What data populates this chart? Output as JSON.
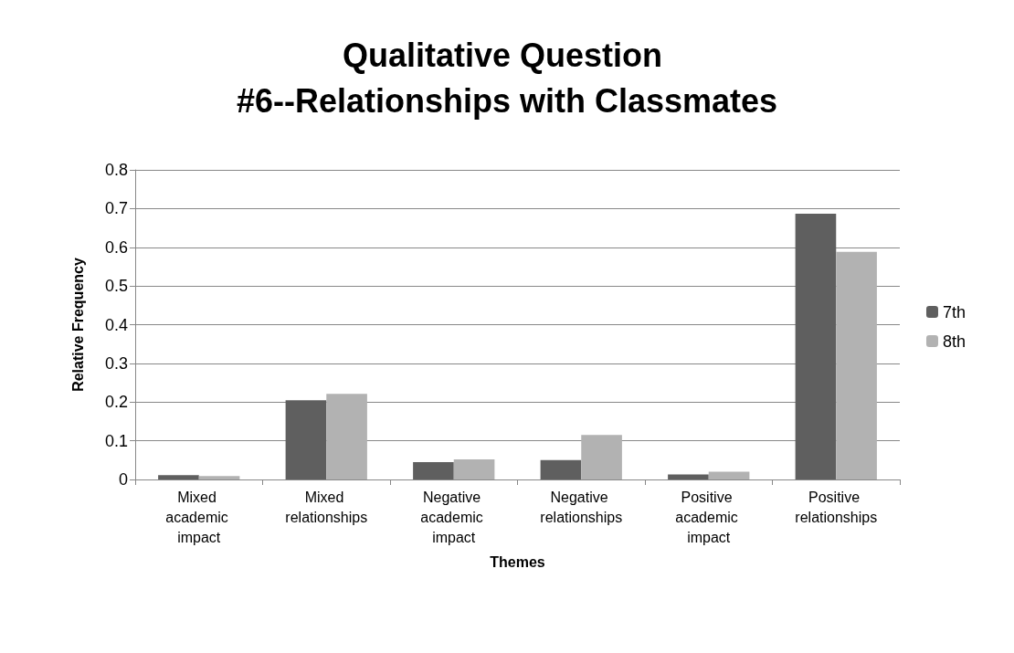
{
  "chart_data": {
    "type": "bar",
    "title": "Qualitative Question #6--Relationships with Classmates",
    "xlabel": "Themes",
    "ylabel": "Relative Frequency",
    "categories": [
      "Mixed academic impact",
      "Mixed relationships",
      "Negative academic impact",
      "Negative relationships",
      "Positive academic impact",
      "Positive relationships"
    ],
    "series": [
      {
        "name": "7th",
        "color": "#5f5f5f",
        "values": [
          0.011,
          0.205,
          0.045,
          0.05,
          0.013,
          0.687
        ]
      },
      {
        "name": "8th",
        "color": "#b2b2b2",
        "values": [
          0.009,
          0.221,
          0.052,
          0.115,
          0.02,
          0.588
        ]
      }
    ],
    "ylim": [
      0,
      0.8
    ],
    "yticks": [
      0,
      0.1,
      0.2,
      0.3,
      0.4,
      0.5,
      0.6,
      0.7,
      0.8
    ],
    "grid": "y",
    "legend": "right"
  }
}
